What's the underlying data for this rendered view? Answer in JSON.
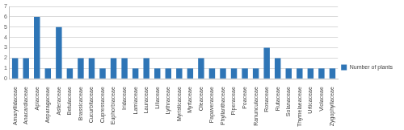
{
  "chart_data": {
    "type": "bar",
    "categories": [
      "Amaryllidaceae",
      "Anacardiaceae",
      "Apiaceae",
      "Asparagaceae",
      "Asteraceae",
      "Betulaceae",
      "Brassicaceae",
      "Cucurbitaceae",
      "Cupressaceae",
      "Euphorbiaceae",
      "Iridaceae",
      "Lamiaceae",
      "Lauraceae",
      "Liliaceae",
      "Lythraceae",
      "Myristicaceae",
      "Myrtaceae",
      "Oleaceae",
      "Papaveraceae",
      "Phyllanthaceae",
      "Piperaceae",
      "Poaceae",
      "Ranunculaceae",
      "Rosaceae",
      "Rutaceae",
      "Solanaceae",
      "Thymelaeaceae",
      "Urticaceae",
      "Violaceae",
      "Zygophyllaceae"
    ],
    "series": [
      {
        "name": "Number of plants",
        "color": "#2e75b6",
        "values": [
          2,
          2,
          6,
          1,
          5,
          1,
          2,
          2,
          1,
          2,
          2,
          1,
          2,
          1,
          1,
          1,
          1,
          2,
          1,
          1,
          1,
          1,
          1,
          3,
          2,
          1,
          1,
          1,
          1,
          1
        ]
      }
    ],
    "ylim": [
      0,
      7
    ],
    "yticks": [
      0,
      1,
      2,
      3,
      4,
      5,
      6,
      7
    ],
    "grid": true,
    "legend": "right"
  }
}
